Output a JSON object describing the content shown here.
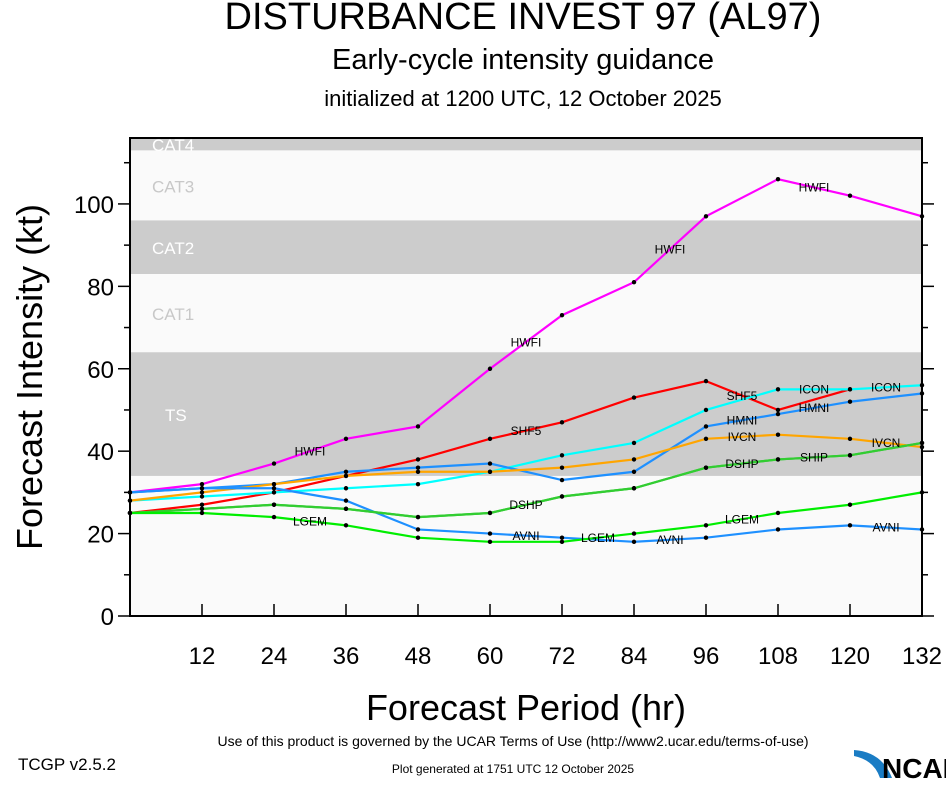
{
  "chart_data": {
    "type": "line",
    "title": "DISTURBANCE INVEST 97 (AL97)",
    "subtitle": "Early-cycle intensity guidance",
    "initialized": "initialized at 1200 UTC, 12 October 2025",
    "xlabel": "Forecast Period (hr)",
    "ylabel": "Forecast Intensity (kt)",
    "xlim": [
      0,
      132
    ],
    "ylim": [
      0,
      116
    ],
    "xticks": [
      12,
      24,
      36,
      48,
      60,
      72,
      84,
      96,
      108,
      120,
      132
    ],
    "yticks": [
      0,
      20,
      40,
      60,
      80,
      100
    ],
    "x": [
      0,
      12,
      24,
      36,
      48,
      60,
      72,
      84,
      96,
      108,
      120,
      132
    ],
    "bands": [
      {
        "name": "TS",
        "from": 34,
        "to": 64,
        "shaded": true
      },
      {
        "name": "CAT1",
        "from": 64,
        "to": 83,
        "shaded": false
      },
      {
        "name": "CAT2",
        "from": 83,
        "to": 96,
        "shaded": true
      },
      {
        "name": "CAT3",
        "from": 96,
        "to": 113,
        "shaded": false
      },
      {
        "name": "CAT4",
        "from": 113,
        "to": 137,
        "shaded": true
      }
    ],
    "series": [
      {
        "name": "HWFI",
        "color": "#ff00ff",
        "values": [
          30,
          32,
          37,
          43,
          46,
          60,
          73,
          81,
          97,
          106,
          102,
          97
        ]
      },
      {
        "name": "SHF5",
        "color": "#ff0000",
        "values": [
          25,
          27,
          30,
          34,
          38,
          43,
          47,
          53,
          57,
          50,
          55,
          null
        ]
      },
      {
        "name": "ICON",
        "color": "#00ffff",
        "values": [
          28,
          29,
          30,
          31,
          32,
          35,
          39,
          42,
          50,
          55,
          55,
          56
        ]
      },
      {
        "name": "HMNI",
        "color": "#1e90ff",
        "values": [
          30,
          31,
          32,
          35,
          36,
          37,
          33,
          35,
          46,
          49,
          52,
          54
        ]
      },
      {
        "name": "IVCN",
        "color": "#ffa500",
        "values": [
          28,
          30,
          32,
          34,
          35,
          35,
          36,
          38,
          43,
          44,
          43,
          41
        ]
      },
      {
        "name": "AVNI",
        "color": "#1e90ff",
        "values": [
          30,
          31,
          31,
          28,
          21,
          20,
          19,
          18,
          19,
          21,
          22,
          21
        ]
      },
      {
        "name": "DSHP",
        "color": "#32cd32",
        "values": [
          25,
          26,
          27,
          26,
          24,
          25,
          29,
          31,
          36,
          38,
          39,
          42
        ]
      },
      {
        "name": "SHIP",
        "color": "#32cd32",
        "values": [
          25,
          26,
          27,
          26,
          24,
          25,
          29,
          31,
          36,
          38,
          39,
          42
        ]
      },
      {
        "name": "LGEM",
        "color": "#00ee00",
        "values": [
          25,
          25,
          24,
          22,
          19,
          18,
          18,
          20,
          22,
          25,
          27,
          30
        ]
      }
    ]
  },
  "footer": {
    "terms": "Use of this product is governed by the UCAR Terms of Use (http://www2.ucar.edu/terms-of-use)",
    "generated": "Plot generated at 1751 UTC   12 October 2025",
    "version": "TCGP v2.5.2",
    "logo": "NCAR"
  }
}
